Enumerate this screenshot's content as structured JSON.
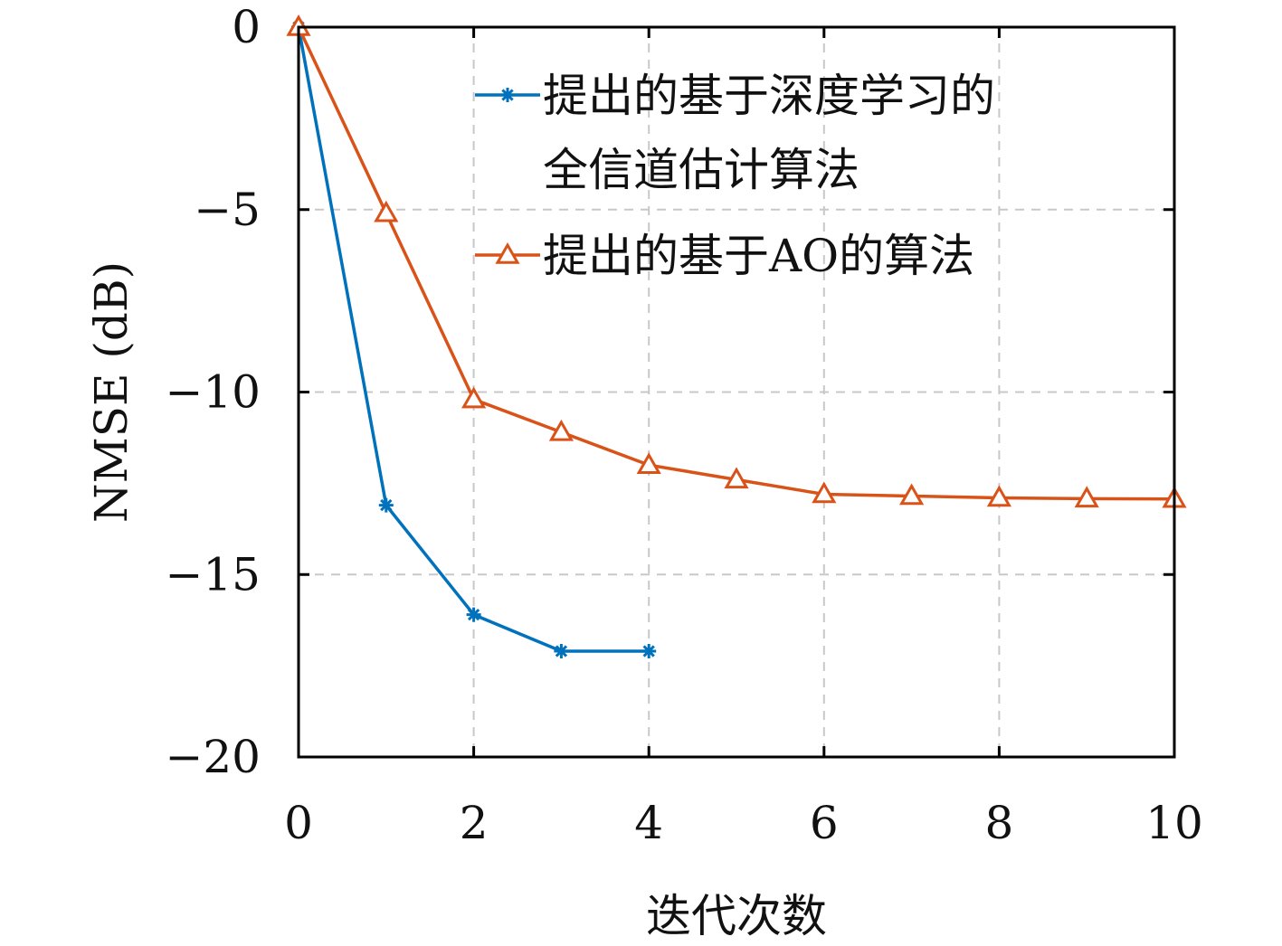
{
  "chart_data": {
    "type": "line",
    "title": "",
    "xlabel": "迭代次数",
    "ylabel": "NMSE (dB)",
    "xlim": [
      0,
      10
    ],
    "ylim": [
      -20,
      0
    ],
    "xticks": [
      0,
      2,
      4,
      6,
      8,
      10
    ],
    "yticks": [
      0,
      -5,
      -10,
      -15,
      -20
    ],
    "grid": true,
    "legend_position": "top-right",
    "series": [
      {
        "name_lines": [
          "提出的基于深度学习的",
          "全信道估计算法"
        ],
        "color": "#0072BD",
        "marker": "asterisk",
        "x": [
          0,
          1,
          2,
          3,
          4
        ],
        "y": [
          0,
          -13.1,
          -16.1,
          -17.1,
          -17.1
        ]
      },
      {
        "name_lines": [
          "提出的基于AO的算法"
        ],
        "color": "#D95319",
        "marker": "triangle",
        "x": [
          0,
          1,
          2,
          3,
          4,
          5,
          6,
          7,
          8,
          9,
          10
        ],
        "y": [
          0,
          -5.1,
          -10.2,
          -11.1,
          -12.0,
          -12.4,
          -12.8,
          -12.85,
          -12.9,
          -12.92,
          -12.93
        ]
      }
    ]
  }
}
